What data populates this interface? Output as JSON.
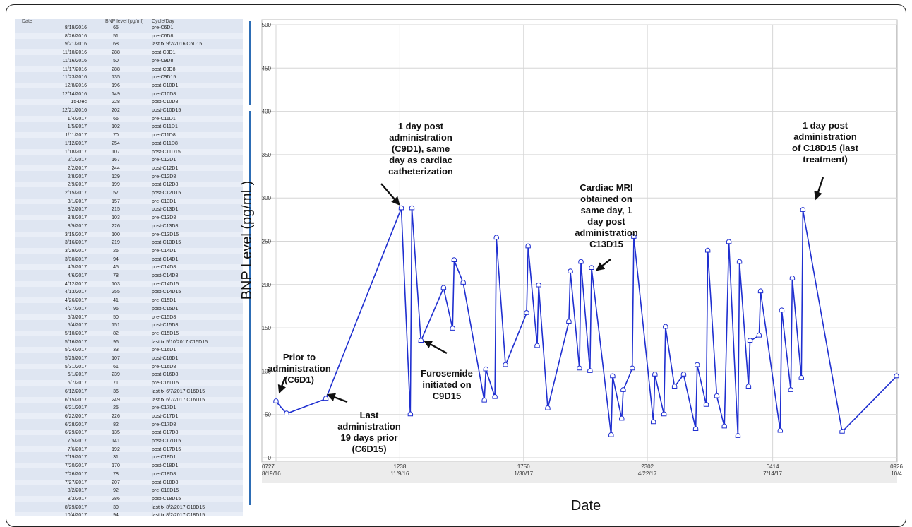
{
  "table": {
    "headers": [
      "Date",
      "BNP level (pg/ml)",
      "Cycle/Day"
    ],
    "rows": [
      [
        "8/19/2016",
        "65",
        "pre-C6D1"
      ],
      [
        "8/26/2016",
        "51",
        "pre-C6D8"
      ],
      [
        "9/21/2016",
        "68",
        "last tx 9/2/2016 C6D15"
      ],
      [
        "11/10/2016",
        "288",
        "post-C9D1"
      ],
      [
        "11/16/2016",
        "50",
        "pre-C9D8"
      ],
      [
        "11/17/2016",
        "288",
        "post-C9D8"
      ],
      [
        "11/23/2016",
        "135",
        "pre-C9D15"
      ],
      [
        "12/8/2016",
        "196",
        "post-C10D1"
      ],
      [
        "12/14/2016",
        "149",
        "pre-C10D8"
      ],
      [
        "15-Dec",
        "228",
        "post-C10D8"
      ],
      [
        "12/21/2016",
        "202",
        "post-C10D15"
      ],
      [
        "1/4/2017",
        "66",
        "pre-C11D1"
      ],
      [
        "1/5/2017",
        "102",
        "post-C11D1"
      ],
      [
        "1/11/2017",
        "70",
        "pre-C11D8"
      ],
      [
        "1/12/2017",
        "254",
        "post-C11D8"
      ],
      [
        "1/18/2017",
        "107",
        "post-C11D15"
      ],
      [
        "2/1/2017",
        "167",
        "pre-C12D1"
      ],
      [
        "2/2/2017",
        "244",
        "post-C12D1"
      ],
      [
        "2/8/2017",
        "129",
        "pre-C12D8"
      ],
      [
        "2/9/2017",
        "199",
        "post-C12D8"
      ],
      [
        "2/15/2017",
        "57",
        "post-C12D15"
      ],
      [
        "3/1/2017",
        "157",
        "pre-C13D1"
      ],
      [
        "3/2/2017",
        "215",
        "post-C13D1"
      ],
      [
        "3/8/2017",
        "103",
        "pre-C13D8"
      ],
      [
        "3/9/2017",
        "226",
        "post-C13D8"
      ],
      [
        "3/15/2017",
        "100",
        "pre-C13D15"
      ],
      [
        "3/16/2017",
        "219",
        "post-C13D15"
      ],
      [
        "3/29/2017",
        "26",
        "pre-C14D1"
      ],
      [
        "3/30/2017",
        "94",
        "post-C14D1"
      ],
      [
        "4/5/2017",
        "45",
        "pre-C14D8"
      ],
      [
        "4/6/2017",
        "78",
        "post-C14D8"
      ],
      [
        "4/12/2017",
        "103",
        "pre-C14D15"
      ],
      [
        "4/13/2017",
        "255",
        "post-C14D15"
      ],
      [
        "4/26/2017",
        "41",
        "pre-C15D1"
      ],
      [
        "4/27/2017",
        "96",
        "post-C15D1"
      ],
      [
        "5/3/2017",
        "50",
        "pre-C15D8"
      ],
      [
        "5/4/2017",
        "151",
        "post-C15D8"
      ],
      [
        "5/10/2017",
        "82",
        "pre-C15D15"
      ],
      [
        "5/16/2017",
        "96",
        "last tx 5/10/2017 C15D15"
      ],
      [
        "5/24/2017",
        "33",
        "pre-C16D1"
      ],
      [
        "5/25/2017",
        "107",
        "post-C16D1"
      ],
      [
        "5/31/2017",
        "61",
        "pre-C16D8"
      ],
      [
        "6/1/2017",
        "239",
        "post-C16D8"
      ],
      [
        "6/7/2017",
        "71",
        "pre-C16D15"
      ],
      [
        "6/12/2017",
        "36",
        "last tx 6/7/2017 C16D15"
      ],
      [
        "6/15/2017",
        "249",
        "last tx 6/7/2017 C16D15"
      ],
      [
        "6/21/2017",
        "25",
        "pre-C17D1"
      ],
      [
        "6/22/2017",
        "226",
        "post-C17D1"
      ],
      [
        "6/28/2017",
        "82",
        "pre-C17D8"
      ],
      [
        "6/29/2017",
        "135",
        "post-C17D8"
      ],
      [
        "7/5/2017",
        "141",
        "post-C17D15"
      ],
      [
        "7/6/2017",
        "192",
        "post-C17D15"
      ],
      [
        "7/19/2017",
        "31",
        "pre-C18D1"
      ],
      [
        "7/20/2017",
        "170",
        "post-C18D1"
      ],
      [
        "7/26/2017",
        "78",
        "pre-C18D8"
      ],
      [
        "7/27/2017",
        "207",
        "post-C18D8"
      ],
      [
        "8/2/2017",
        "92",
        "pre-C18D15"
      ],
      [
        "8/3/2017",
        "286",
        "post-C18D15"
      ],
      [
        "8/29/2017",
        "30",
        "last tx 8/2/2017 C18D15"
      ],
      [
        "10/4/2017",
        "94",
        "last tx 8/2/2017 C18D15"
      ]
    ]
  },
  "chart_data": {
    "type": "line",
    "xlabel": "Date",
    "ylabel": "BNP Level (pg/mL)",
    "ylim": [
      0,
      500
    ],
    "yticks": [
      "0",
      "50",
      "100",
      "150",
      "200",
      "250",
      "300",
      "350",
      "400",
      "450",
      "500"
    ],
    "xticks": [
      {
        "date": "8/19/2016",
        "top": "0727",
        "bottom": "8/19/16"
      },
      {
        "date": "11/9/2016",
        "top": "1238",
        "bottom": "11/9/16"
      },
      {
        "date": "1/30/2017",
        "top": "1750",
        "bottom": "1/30/17"
      },
      {
        "date": "4/22/2017",
        "top": "2302",
        "bottom": "4/22/17"
      },
      {
        "date": "7/14/2017",
        "top": "0414",
        "bottom": "7/14/17"
      },
      {
        "date": "10/4/2017",
        "top": "0926",
        "bottom": "10/4"
      }
    ],
    "grid": true,
    "series": [
      {
        "color": "#1f2fd0",
        "points": [
          [
            "8/19/2016",
            65
          ],
          [
            "8/26/2016",
            51
          ],
          [
            "9/21/2016",
            68
          ],
          [
            "11/10/2016",
            288
          ],
          [
            "11/16/2016",
            50
          ],
          [
            "11/17/2016",
            288
          ],
          [
            "11/23/2016",
            135
          ],
          [
            "12/8/2016",
            196
          ],
          [
            "12/14/2016",
            149
          ],
          [
            "12/15/2016",
            228
          ],
          [
            "12/21/2016",
            202
          ],
          [
            "1/4/2017",
            66
          ],
          [
            "1/5/2017",
            102
          ],
          [
            "1/11/2017",
            70
          ],
          [
            "1/12/2017",
            254
          ],
          [
            "1/18/2017",
            107
          ],
          [
            "2/1/2017",
            167
          ],
          [
            "2/2/2017",
            244
          ],
          [
            "2/8/2017",
            129
          ],
          [
            "2/9/2017",
            199
          ],
          [
            "2/15/2017",
            57
          ],
          [
            "3/1/2017",
            157
          ],
          [
            "3/2/2017",
            215
          ],
          [
            "3/8/2017",
            103
          ],
          [
            "3/9/2017",
            226
          ],
          [
            "3/15/2017",
            100
          ],
          [
            "3/16/2017",
            219
          ],
          [
            "3/29/2017",
            26
          ],
          [
            "3/30/2017",
            94
          ],
          [
            "4/5/2017",
            45
          ],
          [
            "4/6/2017",
            78
          ],
          [
            "4/12/2017",
            103
          ],
          [
            "4/13/2017",
            255
          ],
          [
            "4/26/2017",
            41
          ],
          [
            "4/27/2017",
            96
          ],
          [
            "5/3/2017",
            50
          ],
          [
            "5/4/2017",
            151
          ],
          [
            "5/10/2017",
            82
          ],
          [
            "5/16/2017",
            96
          ],
          [
            "5/24/2017",
            33
          ],
          [
            "5/25/2017",
            107
          ],
          [
            "5/31/2017",
            61
          ],
          [
            "6/1/2017",
            239
          ],
          [
            "6/7/2017",
            71
          ],
          [
            "6/12/2017",
            36
          ],
          [
            "6/15/2017",
            249
          ],
          [
            "6/21/2017",
            25
          ],
          [
            "6/22/2017",
            226
          ],
          [
            "6/28/2017",
            82
          ],
          [
            "6/29/2017",
            135
          ],
          [
            "7/5/2017",
            141
          ],
          [
            "7/6/2017",
            192
          ],
          [
            "7/19/2017",
            31
          ],
          [
            "7/20/2017",
            170
          ],
          [
            "7/26/2017",
            78
          ],
          [
            "7/27/2017",
            207
          ],
          [
            "8/2/2017",
            92
          ],
          [
            "8/3/2017",
            286
          ],
          [
            "8/29/2017",
            30
          ],
          [
            "10/4/2017",
            94
          ]
        ]
      }
    ],
    "annotations": [
      {
        "lines": [
          "Prior to",
          "administration",
          "(C6D1)"
        ],
        "target": [
          "8/19/2016",
          65
        ]
      },
      {
        "lines": [
          "Last",
          "administration",
          "19 days prior",
          "(C6D15)"
        ],
        "target": [
          "9/21/2016",
          68
        ]
      },
      {
        "lines": [
          "1 day post",
          "administration",
          "(C9D1), same",
          "day as cardiac",
          "catheterization"
        ],
        "target": [
          "11/10/2016",
          288
        ]
      },
      {
        "lines": [
          "Furosemide",
          "initiated on",
          "C9D15"
        ],
        "target": [
          "11/23/2016",
          135
        ]
      },
      {
        "lines": [
          "Cardiac MRI",
          "obtained on",
          "same day, 1",
          "day post",
          "administration",
          "C13D15"
        ],
        "target": [
          "3/16/2017",
          219
        ]
      },
      {
        "lines": [
          "1 day post",
          "administration",
          "of C18D15 (last",
          "treatment)"
        ],
        "target": [
          "8/3/2017",
          286
        ]
      }
    ]
  }
}
